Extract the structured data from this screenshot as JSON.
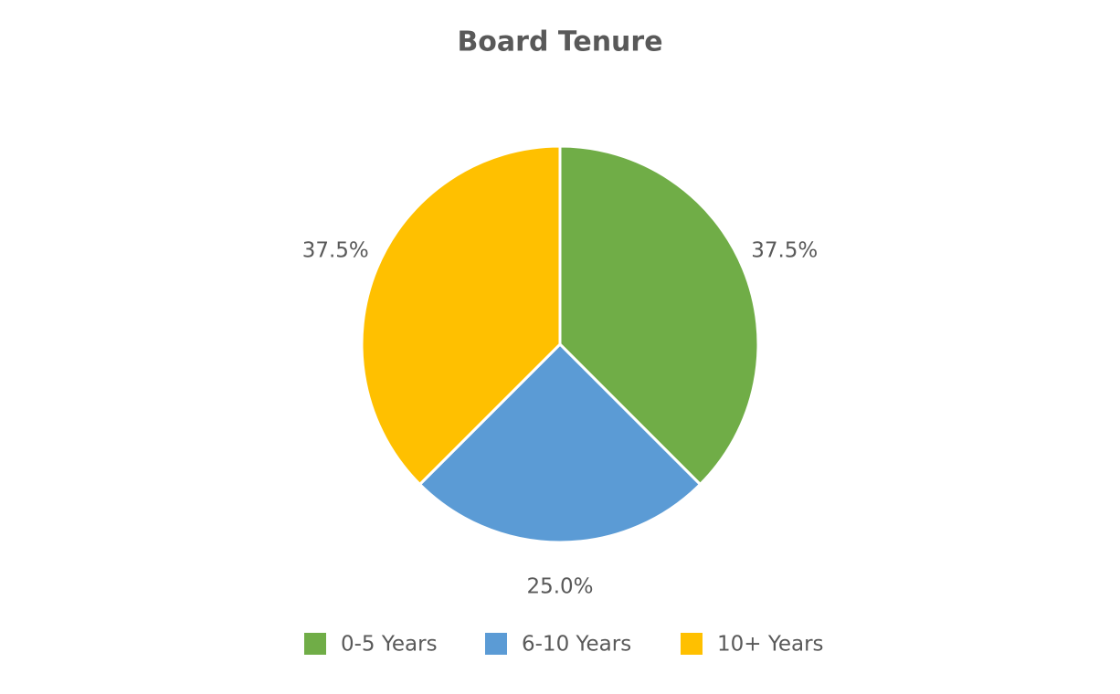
{
  "chart_data": {
    "type": "pie",
    "title": "Board Tenure",
    "categories": [
      "0-5 Years",
      "6-10 Years",
      "10+ Years"
    ],
    "values": [
      37.5,
      25,
      37.5
    ],
    "value_labels": [
      "37.5%",
      "25.0%",
      "37.5%"
    ],
    "colors": [
      "#70ad47",
      "#5b9bd5",
      "#ffc000"
    ],
    "legend": "bottom"
  }
}
